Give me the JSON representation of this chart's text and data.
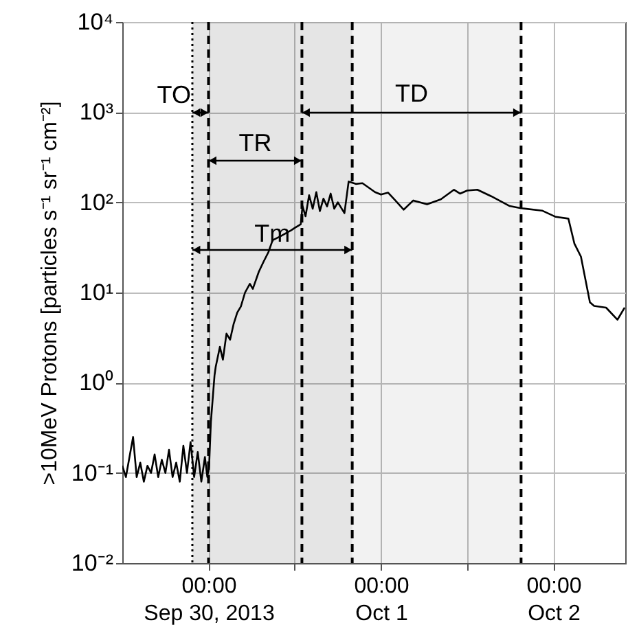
{
  "chart_data": {
    "type": "line",
    "ylabel": ">10MeV Protons [particles s⁻¹ sr⁻¹ cm⁻²]",
    "log": true,
    "grid": true,
    "xlim": [
      "2013-09-29T12:00",
      "2013-10-02T10:00"
    ],
    "xticks": [
      {
        "value": "2013-09-30T00:00",
        "label": "00:00\nSep 30, 2013"
      },
      {
        "value": "2013-09-30T12:00",
        "label": null
      },
      {
        "value": "2013-10-01T00:00",
        "label": "00:00\nOct 1"
      },
      {
        "value": "2013-10-01T12:00",
        "label": null
      },
      {
        "value": "2013-10-02T00:00",
        "label": "00:00\nOct 2"
      }
    ],
    "ylim": [
      0.01,
      10000
    ],
    "yticks": [
      {
        "value": 0.01,
        "label": "10⁻²"
      },
      {
        "value": 0.1,
        "label": "10⁻¹"
      },
      {
        "value": 1,
        "label": "10⁰"
      },
      {
        "value": 10,
        "label": "10¹"
      },
      {
        "value": 100,
        "label": "10²"
      },
      {
        "value": 1000,
        "label": "10³"
      },
      {
        "value": 10000,
        "label": "10⁴"
      }
    ],
    "x": [
      "2013-09-29T12:00",
      "2013-09-29T12:30",
      "2013-09-29T13:00",
      "2013-09-29T13:30",
      "2013-09-29T14:00",
      "2013-09-29T14:30",
      "2013-09-29T15:00",
      "2013-09-29T15:30",
      "2013-09-29T16:00",
      "2013-09-29T16:30",
      "2013-09-29T17:00",
      "2013-09-29T17:30",
      "2013-09-29T18:00",
      "2013-09-29T18:30",
      "2013-09-29T19:00",
      "2013-09-29T19:30",
      "2013-09-29T20:00",
      "2013-09-29T20:30",
      "2013-09-29T21:00",
      "2013-09-29T21:30",
      "2013-09-29T22:00",
      "2013-09-29T22:30",
      "2013-09-29T23:00",
      "2013-09-29T23:30",
      "2013-09-29T23:50",
      "2013-09-30T00:05",
      "2013-09-30T00:20",
      "2013-09-30T00:50",
      "2013-09-30T01:00",
      "2013-09-30T01:35",
      "2013-09-30T02:00",
      "2013-09-30T02:30",
      "2013-09-30T03:00",
      "2013-09-30T03:30",
      "2013-09-30T04:00",
      "2013-09-30T04:30",
      "2013-09-30T05:05",
      "2013-09-30T05:45",
      "2013-09-30T06:10",
      "2013-09-30T07:00",
      "2013-09-30T07:40",
      "2013-09-30T08:20",
      "2013-09-30T08:55",
      "2013-09-30T10:00",
      "2013-09-30T11:30",
      "2013-09-30T12:00",
      "2013-09-30T12:50",
      "2013-09-30T13:05",
      "2013-09-30T13:30",
      "2013-09-30T14:00",
      "2013-09-30T14:30",
      "2013-09-30T15:00",
      "2013-09-30T15:30",
      "2013-09-30T16:00",
      "2013-09-30T16:30",
      "2013-09-30T17:00",
      "2013-09-30T17:30",
      "2013-09-30T18:00",
      "2013-09-30T18:55",
      "2013-09-30T19:30",
      "2013-09-30T20:30",
      "2013-09-30T21:25",
      "2013-09-30T22:20",
      "2013-09-30T23:10",
      "2013-10-01T00:00",
      "2013-10-01T01:00",
      "2013-10-01T02:00",
      "2013-10-01T03:10",
      "2013-10-01T04:30",
      "2013-10-01T06:25",
      "2013-10-01T08:20",
      "2013-10-01T10:10",
      "2013-10-01T11:00",
      "2013-10-01T12:00",
      "2013-10-01T13:25",
      "2013-10-01T15:20",
      "2013-10-01T17:55",
      "2013-10-01T19:30",
      "2013-10-01T22:25",
      "2013-10-02T00:20",
      "2013-10-02T02:05",
      "2013-10-02T02:10",
      "2013-10-02T02:55",
      "2013-10-02T03:50",
      "2013-10-02T04:35",
      "2013-10-02T05:05",
      "2013-10-02T05:40",
      "2013-10-02T07:20",
      "2013-10-02T08:55",
      "2013-10-02T09:55"
    ],
    "series": [
      {
        "color": "#000000",
        "values": [
          0.12,
          0.09,
          0.15,
          0.25,
          0.09,
          0.13,
          0.08,
          0.12,
          0.1,
          0.16,
          0.09,
          0.14,
          0.1,
          0.18,
          0.09,
          0.13,
          0.08,
          0.2,
          0.1,
          0.22,
          0.09,
          0.17,
          0.08,
          0.15,
          0.09,
          0.12,
          0.37,
          1.2,
          1.5,
          2.5,
          1.8,
          3.5,
          3,
          4.5,
          6,
          7,
          10,
          12.5,
          11,
          17,
          22,
          28,
          38,
          42,
          49,
          52,
          57,
          91,
          70,
          120,
          85,
          130,
          80,
          110,
          90,
          125,
          85,
          100,
          76,
          170,
          160,
          163,
          145,
          130,
          122,
          128,
          105,
          83,
          105,
          95,
          108,
          138,
          125,
          135,
          138,
          117,
          91,
          86,
          81,
          69,
          66,
          62,
          35,
          25,
          12.4,
          7.8,
          7.1,
          6.8,
          5,
          6.8
        ]
      }
    ],
    "ref_lines": [
      {
        "axis": "x",
        "value": "2013-09-29T21:45",
        "line_style": "dotted"
      },
      {
        "axis": "x",
        "value": "2013-09-30T00:00",
        "line_style": "dashed"
      },
      {
        "axis": "x",
        "value": "2013-09-30T13:00",
        "line_style": "dashed"
      },
      {
        "axis": "x",
        "value": "2013-09-30T20:00",
        "line_style": "dashed"
      },
      {
        "axis": "x",
        "value": "2013-10-01T19:30",
        "line_style": "dashed"
      }
    ],
    "bands": [
      {
        "axis": "x",
        "from": "2013-09-29T21:45",
        "to": "2013-09-30T00:00",
        "label": "TO"
      },
      {
        "axis": "x",
        "from": "2013-09-30T00:00",
        "to": "2013-09-30T13:00",
        "label": "TR"
      },
      {
        "axis": "x",
        "from": "2013-09-30T13:00",
        "to": "2013-10-01T19:30",
        "label": "TD"
      },
      {
        "axis": "x",
        "from": "2013-09-29T21:45",
        "to": "2013-09-30T20:00",
        "label": "Tm"
      }
    ]
  }
}
